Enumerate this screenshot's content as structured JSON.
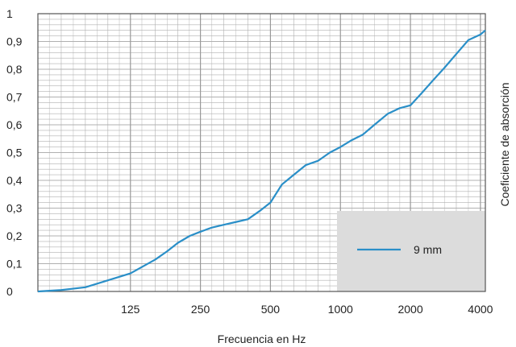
{
  "chart_data": {
    "type": "line",
    "title": "",
    "xlabel": "Frecuencia en Hz",
    "ylabel": "Coeficiente de absorción",
    "x_scale": "log",
    "x_ticks": [
      125,
      250,
      500,
      1000,
      2000,
      4000
    ],
    "x_tick_labels": [
      "125",
      "250",
      "500",
      "1000",
      "2000",
      "4000"
    ],
    "y_ticks": [
      0,
      0.1,
      0.2,
      0.3,
      0.4,
      0.5,
      0.6,
      0.7,
      0.8,
      0.9,
      1
    ],
    "y_tick_labels": [
      "0",
      "0,1",
      "0,2",
      "0,3",
      "0,4",
      "0,5",
      "0,6",
      "0,7",
      "0,8",
      "0,9",
      "1"
    ],
    "xlim": [
      50,
      4200
    ],
    "ylim": [
      0,
      1
    ],
    "grid": true,
    "legend_position": "bottom-right",
    "colors": {
      "series": "#2a8fc8",
      "grid": "#b0b0b0",
      "legend_bg": "#dcdcdc",
      "frame": "#555555"
    },
    "series": [
      {
        "name": "9 mm",
        "x": [
          50,
          63,
          80,
          100,
          125,
          160,
          180,
          200,
          225,
          250,
          280,
          315,
          355,
          400,
          450,
          500,
          560,
          630,
          710,
          800,
          900,
          1000,
          1120,
          1250,
          1400,
          1600,
          1800,
          2000,
          2240,
          2500,
          2800,
          3150,
          3550,
          4000,
          4200
        ],
        "y": [
          0.0,
          0.005,
          0.015,
          0.04,
          0.065,
          0.115,
          0.145,
          0.175,
          0.2,
          0.215,
          0.23,
          0.24,
          0.25,
          0.26,
          0.29,
          0.32,
          0.385,
          0.42,
          0.455,
          0.47,
          0.5,
          0.52,
          0.545,
          0.565,
          0.6,
          0.64,
          0.66,
          0.67,
          0.715,
          0.76,
          0.805,
          0.855,
          0.905,
          0.925,
          0.94
        ]
      }
    ]
  }
}
